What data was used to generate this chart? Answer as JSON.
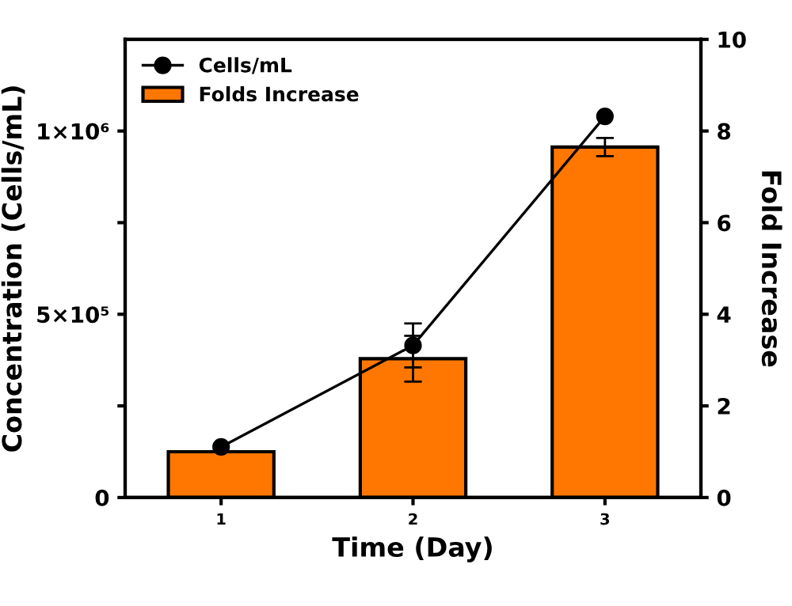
{
  "chart_data": {
    "type": "bar",
    "xlabel": "Time (Day)",
    "ylabel": "Concentration (Cells/mL)",
    "y2label": "Fold Increase",
    "x": [
      1,
      2,
      3
    ],
    "xlim": [
      0.5,
      3.5
    ],
    "xticks": [
      1,
      2,
      3
    ],
    "series": [
      {
        "name": "Cells/mL",
        "type": "line",
        "axis": "y",
        "color": "#000000",
        "values": [
          138000,
          415000,
          1040000
        ],
        "errors": [
          null,
          60000,
          null
        ]
      },
      {
        "name": "Folds Increase",
        "axis": "y2",
        "color": "#ff7700",
        "values": [
          1,
          3.03,
          7.65
        ],
        "errors": [
          null,
          0.5,
          0.2
        ]
      }
    ],
    "ylim": [
      0,
      1250000
    ],
    "yticks": [
      0,
      {
        "value": 250000,
        "label": null
      },
      {
        "value": 500000,
        "label": "5×10⁵"
      },
      {
        "value": 750000,
        "label": null
      },
      {
        "value": 1000000,
        "label": "1×10⁶"
      }
    ],
    "y2lim": [
      0,
      10
    ],
    "y2ticks": [
      0,
      2,
      4,
      6,
      8,
      10
    ],
    "legend": "top left",
    "marker": "circle",
    "line_style": "solid",
    "grid": false
  }
}
